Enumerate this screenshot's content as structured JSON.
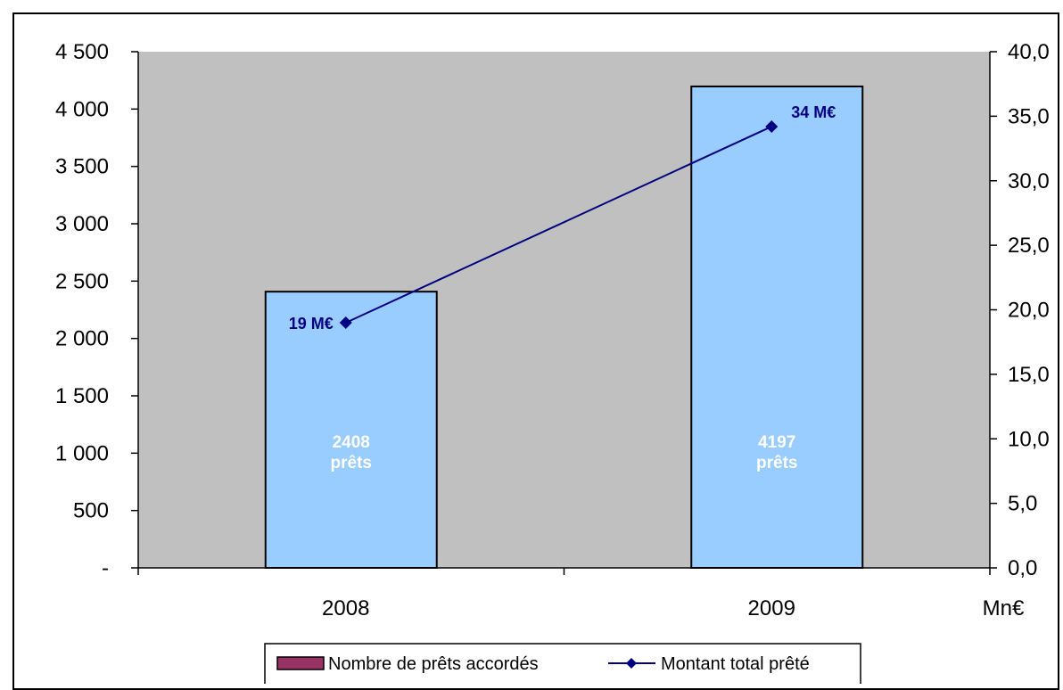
{
  "chart_data": {
    "type": "bar",
    "categories": [
      "2008",
      "2009"
    ],
    "series": [
      {
        "name": "Nombre de prêts accordés",
        "type": "bar",
        "axis": "left",
        "values": [
          2408,
          4197
        ],
        "labels": [
          [
            "2408",
            "prêts"
          ],
          [
            "4197",
            "prêts"
          ]
        ],
        "color": "#99ccff"
      },
      {
        "name": "Montant total prêté",
        "type": "line",
        "axis": "right",
        "values": [
          19,
          34.2
        ],
        "labels": [
          "19 M€",
          "34 M€"
        ],
        "color": "#000080"
      }
    ],
    "left_axis": {
      "ylim": [
        0,
        4500
      ],
      "ticks": [
        0,
        500,
        1000,
        1500,
        2000,
        2500,
        3000,
        3500,
        4000,
        4500
      ],
      "tick_labels": [
        "-",
        "500",
        "1 000",
        "1 500",
        "2 000",
        "2 500",
        "3 000",
        "3 500",
        "4 000",
        "4 500"
      ]
    },
    "right_axis": {
      "ylim": [
        0,
        40
      ],
      "ticks": [
        0,
        5,
        10,
        15,
        20,
        25,
        30,
        35,
        40
      ],
      "tick_labels": [
        "0,0",
        "5,0",
        "10,0",
        "15,0",
        "20,0",
        "25,0",
        "30,0",
        "35,0",
        "40,0"
      ],
      "unit_label": "Mn€"
    },
    "plot_background": "#c0c0c0",
    "grid": false,
    "legend_position": "bottom",
    "legend_bar_color": "#993366"
  }
}
